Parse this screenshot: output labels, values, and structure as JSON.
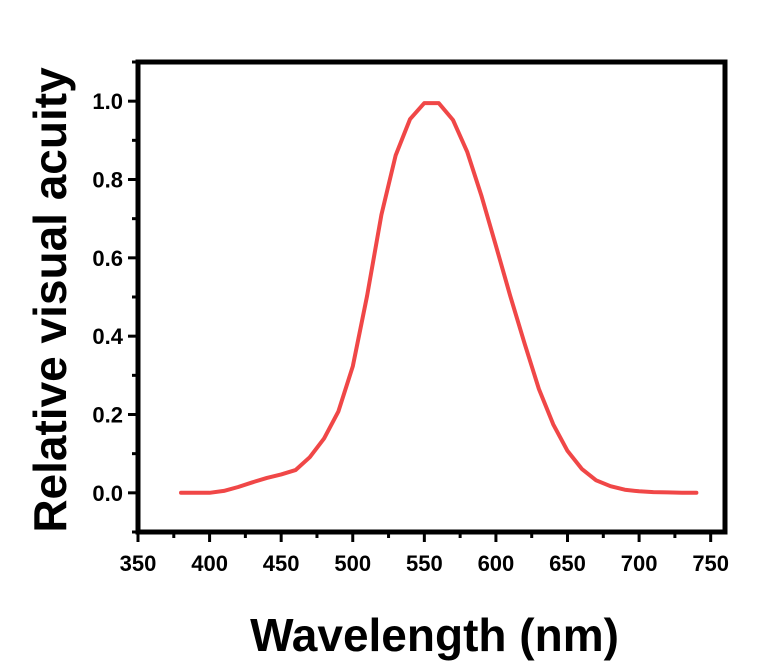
{
  "chart_data": {
    "type": "line",
    "title": "",
    "xlabel": "Wavelength (nm)",
    "ylabel": "Relative visual acuity",
    "xlim": [
      350,
      760
    ],
    "ylim": [
      -0.1,
      1.1
    ],
    "x_ticks": [
      350,
      400,
      450,
      500,
      550,
      600,
      650,
      700,
      750
    ],
    "x_tick_labels": [
      "350",
      "400",
      "450",
      "500",
      "550",
      "600",
      "650",
      "700",
      "750"
    ],
    "y_ticks": [
      0.0,
      0.2,
      0.4,
      0.6,
      0.8,
      1.0
    ],
    "y_tick_labels": [
      "0.0",
      "0.2",
      "0.4",
      "0.6",
      "0.8",
      "1.0"
    ],
    "grid": false,
    "legend": "none",
    "series": [
      {
        "color": "#f04747",
        "x": [
          380,
          390,
          400,
          410,
          420,
          430,
          440,
          450,
          460,
          470,
          480,
          490,
          500,
          510,
          520,
          530,
          540,
          550,
          560,
          570,
          580,
          590,
          600,
          610,
          620,
          630,
          640,
          650,
          660,
          670,
          680,
          690,
          700,
          710,
          720,
          730,
          740
        ],
        "y": [
          0.0,
          0.0,
          0.0,
          0.005,
          0.015,
          0.027,
          0.038,
          0.047,
          0.058,
          0.091,
          0.139,
          0.208,
          0.323,
          0.503,
          0.71,
          0.862,
          0.954,
          0.995,
          0.995,
          0.952,
          0.87,
          0.757,
          0.631,
          0.503,
          0.381,
          0.265,
          0.175,
          0.107,
          0.061,
          0.032,
          0.017,
          0.008,
          0.004,
          0.002,
          0.001,
          0.0,
          0.0
        ]
      }
    ]
  }
}
